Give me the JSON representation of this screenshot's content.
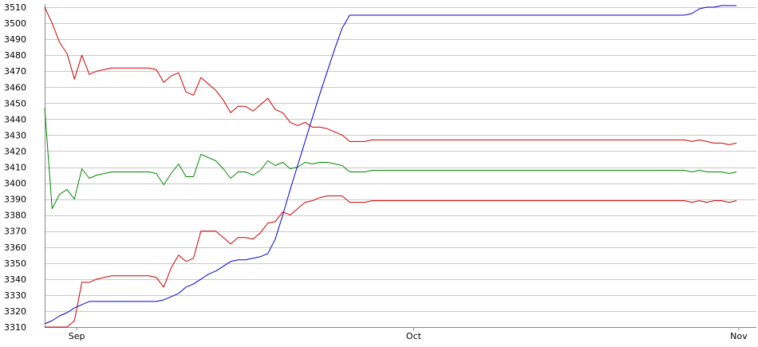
{
  "chart_data": {
    "type": "line",
    "title": "",
    "xlabel": "",
    "ylabel": "",
    "ylim": [
      3310,
      3510
    ],
    "yticks": [
      3310,
      3320,
      3330,
      3340,
      3350,
      3360,
      3370,
      3380,
      3390,
      3400,
      3410,
      3420,
      3430,
      3440,
      3450,
      3460,
      3470,
      3480,
      3490,
      3500,
      3510
    ],
    "xlim": [
      0,
      94.6
    ],
    "xticks": [
      {
        "x": 4.3,
        "label": "Sep"
      },
      {
        "x": 49.6,
        "label": "Oct"
      },
      {
        "x": 93.3,
        "label": "Nov"
      }
    ],
    "grid": true,
    "legend": "none",
    "colors": {
      "upper": "#cc0000",
      "middle": "#008800",
      "lower": "#cc0000",
      "price": "#0000cc",
      "grid": "#c8c8c8",
      "axis": "#888888"
    },
    "x": [
      0,
      1,
      2,
      3,
      4,
      5,
      6,
      7,
      8,
      9,
      10,
      11,
      12,
      13,
      14,
      15,
      16,
      17,
      18,
      19,
      20,
      21,
      22,
      23,
      24,
      25,
      26,
      27,
      28,
      29,
      30,
      31,
      32,
      33,
      34,
      35,
      36,
      37,
      38,
      39,
      40,
      41,
      42,
      43,
      44,
      45,
      46,
      47,
      48,
      49,
      50,
      51,
      52,
      53,
      54,
      55,
      56,
      57,
      58,
      59,
      60,
      61,
      62,
      63,
      64,
      65,
      66,
      67,
      68,
      69,
      70,
      71,
      72,
      73,
      74,
      75,
      76,
      77,
      78,
      79,
      80,
      81,
      82,
      83,
      84,
      85,
      86,
      87,
      88,
      89,
      90,
      91,
      92,
      93
    ],
    "series": [
      {
        "key": "upper",
        "values": [
          3510,
          3500,
          3488,
          3481,
          3465,
          3480,
          3468,
          3470,
          3471,
          3472,
          3472,
          3472,
          3472,
          3472,
          3472,
          3471,
          3463,
          3467,
          3469,
          3457,
          3455,
          3466,
          3462,
          3458,
          3452,
          3444,
          3448,
          3448,
          3445,
          3449,
          3453,
          3446,
          3444,
          3438,
          3436,
          3438,
          3435,
          3435,
          3434,
          3432,
          3430,
          3426,
          3426,
          3426,
          3427,
          3427,
          3427,
          3427,
          3427,
          3427,
          3427,
          3427,
          3427,
          3427,
          3427,
          3427,
          3427,
          3427,
          3427,
          3427,
          3427,
          3427,
          3427,
          3427,
          3427,
          3427,
          3427,
          3427,
          3427,
          3427,
          3427,
          3427,
          3427,
          3427,
          3427,
          3427,
          3427,
          3427,
          3427,
          3427,
          3427,
          3427,
          3427,
          3427,
          3427,
          3427,
          3427,
          3426,
          3427,
          3426,
          3425,
          3425,
          3424,
          3425
        ]
      },
      {
        "key": "middle",
        "values": [
          3447,
          3384,
          3393,
          3396,
          3390,
          3409,
          3403,
          3405,
          3406,
          3407,
          3407,
          3407,
          3407,
          3407,
          3407,
          3406,
          3399,
          3406,
          3412,
          3404,
          3404,
          3418,
          3416,
          3414,
          3409,
          3403,
          3407,
          3407,
          3405,
          3408,
          3414,
          3411,
          3413,
          3409,
          3410,
          3413,
          3412,
          3413,
          3413,
          3412,
          3411,
          3407,
          3407,
          3407,
          3408,
          3408,
          3408,
          3408,
          3408,
          3408,
          3408,
          3408,
          3408,
          3408,
          3408,
          3408,
          3408,
          3408,
          3408,
          3408,
          3408,
          3408,
          3408,
          3408,
          3408,
          3408,
          3408,
          3408,
          3408,
          3408,
          3408,
          3408,
          3408,
          3408,
          3408,
          3408,
          3408,
          3408,
          3408,
          3408,
          3408,
          3408,
          3408,
          3408,
          3408,
          3408,
          3408,
          3407,
          3408,
          3407,
          3407,
          3407,
          3406,
          3407
        ]
      },
      {
        "key": "lower",
        "values": [
          3310,
          3310,
          3310,
          3310,
          3314,
          3338,
          3338,
          3340,
          3341,
          3342,
          3342,
          3342,
          3342,
          3342,
          3342,
          3341,
          3335,
          3347,
          3355,
          3351,
          3353,
          3370,
          3370,
          3370,
          3366,
          3362,
          3366,
          3366,
          3365,
          3369,
          3375,
          3376,
          3382,
          3380,
          3384,
          3388,
          3389,
          3391,
          3392,
          3392,
          3392,
          3388,
          3388,
          3388,
          3389,
          3389,
          3389,
          3389,
          3389,
          3389,
          3389,
          3389,
          3389,
          3389,
          3389,
          3389,
          3389,
          3389,
          3389,
          3389,
          3389,
          3389,
          3389,
          3389,
          3389,
          3389,
          3389,
          3389,
          3389,
          3389,
          3389,
          3389,
          3389,
          3389,
          3389,
          3389,
          3389,
          3389,
          3389,
          3389,
          3389,
          3389,
          3389,
          3389,
          3389,
          3389,
          3389,
          3388,
          3389,
          3388,
          3389,
          3389,
          3388,
          3389
        ]
      },
      {
        "key": "price",
        "values": [
          3312,
          3314,
          3317,
          3319,
          3322,
          3324,
          3326,
          3326,
          3326,
          3326,
          3326,
          3326,
          3326,
          3326,
          3326,
          3326,
          3327,
          3329,
          3331,
          3335,
          3337,
          3340,
          3343,
          3345,
          3348,
          3351,
          3352,
          3352,
          3353,
          3354,
          3356,
          3365,
          3380,
          3396,
          3411,
          3426,
          3441,
          3456,
          3470,
          3484,
          3497,
          3505,
          3505,
          3505,
          3505,
          3505,
          3505,
          3505,
          3505,
          3505,
          3505,
          3505,
          3505,
          3505,
          3505,
          3505,
          3505,
          3505,
          3505,
          3505,
          3505,
          3505,
          3505,
          3505,
          3505,
          3505,
          3505,
          3505,
          3505,
          3505,
          3505,
          3505,
          3505,
          3505,
          3505,
          3505,
          3505,
          3505,
          3505,
          3505,
          3505,
          3505,
          3505,
          3505,
          3505,
          3505,
          3505,
          3506,
          3509,
          3510,
          3510,
          3511,
          3511,
          3511
        ]
      }
    ]
  }
}
